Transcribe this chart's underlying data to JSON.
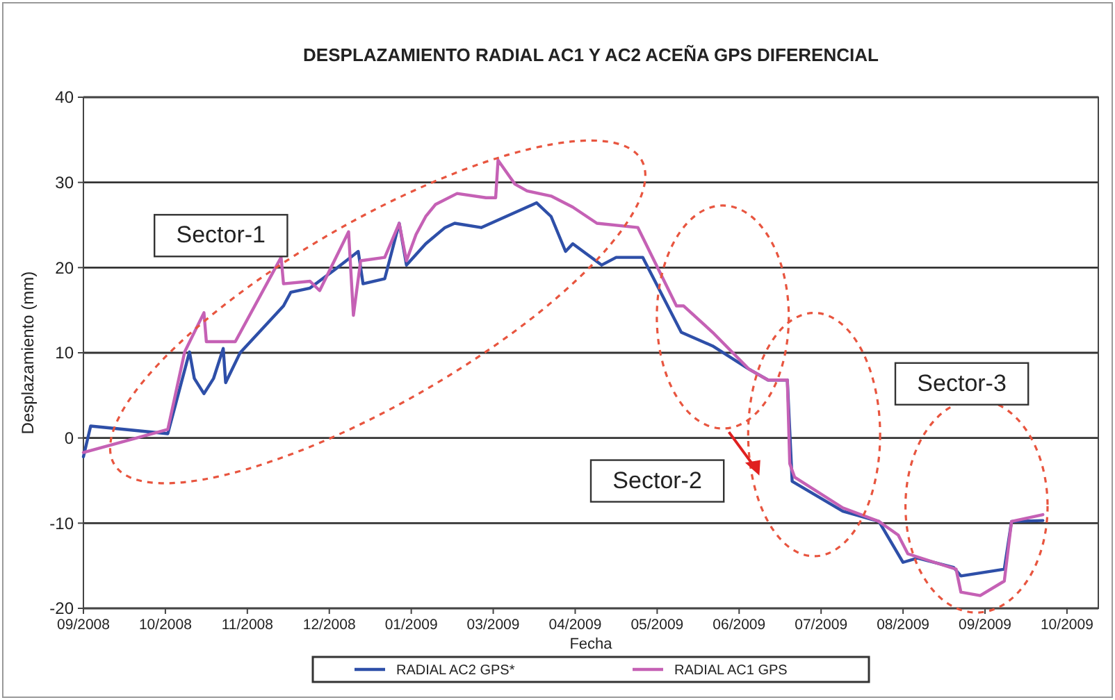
{
  "chart_data": {
    "type": "line",
    "title": "DESPLAZAMIENTO RADIAL AC1 Y AC2 ACEÑA GPS DIFERENCIAL",
    "xlabel": "Fecha",
    "ylabel": "Desplazamiento (mm)",
    "xlim": [
      "2008-09-10",
      "2009-11-05"
    ],
    "xticks": [
      {
        "value": "2008-09-10",
        "label": "09/2008"
      },
      {
        "value": "2008-10-14",
        "label": "10/2008"
      },
      {
        "value": "2008-11-17",
        "label": "11/2008"
      },
      {
        "value": "2008-12-21",
        "label": "12/2008"
      },
      {
        "value": "2009-01-24",
        "label": "01/2009"
      },
      {
        "value": "2009-02-27",
        "label": "03/2009"
      },
      {
        "value": "2009-04-02",
        "label": "04/2009"
      },
      {
        "value": "2009-05-06",
        "label": "05/2009"
      },
      {
        "value": "2009-06-09",
        "label": "06/2009"
      },
      {
        "value": "2009-07-13",
        "label": "07/2009"
      },
      {
        "value": "2009-08-16",
        "label": "08/2009"
      },
      {
        "value": "2009-09-19",
        "label": "09/2009"
      },
      {
        "value": "2009-10-23",
        "label": "10/2009"
      }
    ],
    "ylim": [
      -20,
      40
    ],
    "yticks": [
      -20,
      -10,
      0,
      10,
      20,
      30,
      40
    ],
    "grid": "y",
    "legend": "bottom",
    "annotations": [
      "Sector-1",
      "Sector-2",
      "Sector-3"
    ],
    "series": [
      {
        "name": "RADIAL AC2 GPS*",
        "color": "#2e4fa8",
        "x": [
          "2008-09-10",
          "2008-09-13",
          "2008-10-15",
          "2008-10-24",
          "2008-10-26",
          "2008-10-30",
          "2008-11-03",
          "2008-11-07",
          "2008-11-08",
          "2008-11-14",
          "2008-12-02",
          "2008-12-05",
          "2008-12-13",
          "2008-12-23",
          "2009-01-02",
          "2009-01-04",
          "2009-01-13",
          "2009-01-19",
          "2009-01-22",
          "2009-01-30",
          "2009-02-07",
          "2009-02-11",
          "2009-02-22",
          "2009-03-17",
          "2009-03-23",
          "2009-03-29",
          "2009-04-01",
          "2009-04-13",
          "2009-04-19",
          "2009-04-30",
          "2009-05-16",
          "2009-05-29",
          "2009-06-13",
          "2009-06-21",
          "2009-06-29",
          "2009-07-01",
          "2009-07-22",
          "2009-08-06",
          "2009-08-16",
          "2009-08-22",
          "2009-09-06",
          "2009-09-09",
          "2009-09-27",
          "2009-09-30",
          "2009-10-13"
        ],
        "values": [
          -2.2,
          1.4,
          0.5,
          10.1,
          7,
          5.2,
          7,
          10.5,
          6.5,
          10,
          15.5,
          17.1,
          17.6,
          19.7,
          21.9,
          18.1,
          18.7,
          25.2,
          20.3,
          22.8,
          24.7,
          25.2,
          24.7,
          27.6,
          26,
          21.9,
          22.8,
          20.3,
          21.2,
          21.2,
          12.4,
          10.8,
          8.1,
          6.8,
          6.8,
          -5.1,
          -8.6,
          -9.8,
          -14.6,
          -14.1,
          -15.2,
          -16.2,
          -15.4,
          -9.8,
          -9.7
        ]
      },
      {
        "name": "RADIAL AC1 GPS",
        "color": "#c561b5",
        "x": [
          "2008-09-10",
          "2008-10-15",
          "2008-10-22",
          "2008-10-30",
          "2008-10-31",
          "2008-11-12",
          "2008-12-01",
          "2008-12-02",
          "2008-12-13",
          "2008-12-17",
          "2008-12-29",
          "2008-12-31",
          "2009-01-03",
          "2009-01-13",
          "2009-01-19",
          "2009-01-22",
          "2009-01-26",
          "2009-01-30",
          "2009-02-03",
          "2009-02-12",
          "2009-02-24",
          "2009-02-28",
          "2009-03-01",
          "2009-03-08",
          "2009-03-13",
          "2009-03-23",
          "2009-04-01",
          "2009-04-11",
          "2009-04-28",
          "2009-05-14",
          "2009-05-17",
          "2009-05-29",
          "2009-06-13",
          "2009-06-21",
          "2009-06-29",
          "2009-06-30",
          "2009-07-02",
          "2009-07-22",
          "2009-08-06",
          "2009-08-14",
          "2009-08-18",
          "2009-08-29",
          "2009-09-07",
          "2009-09-09",
          "2009-09-17",
          "2009-09-27",
          "2009-09-30",
          "2009-10-13"
        ],
        "values": [
          -1.7,
          1,
          10.1,
          14.7,
          11.3,
          11.3,
          21.2,
          18.1,
          18.4,
          17.3,
          24.2,
          14.4,
          20.8,
          21.2,
          25.2,
          20.8,
          23.9,
          26,
          27.4,
          28.7,
          28.2,
          28.2,
          32.6,
          29.8,
          29,
          28.4,
          27.1,
          25.2,
          24.7,
          15.5,
          15.5,
          12.4,
          8.1,
          6.8,
          6.8,
          -3,
          -4.6,
          -8.2,
          -9.8,
          -11.4,
          -13.6,
          -14.6,
          -15.4,
          -18.1,
          -18.5,
          -16.8,
          -9.8,
          -9
        ]
      }
    ]
  }
}
